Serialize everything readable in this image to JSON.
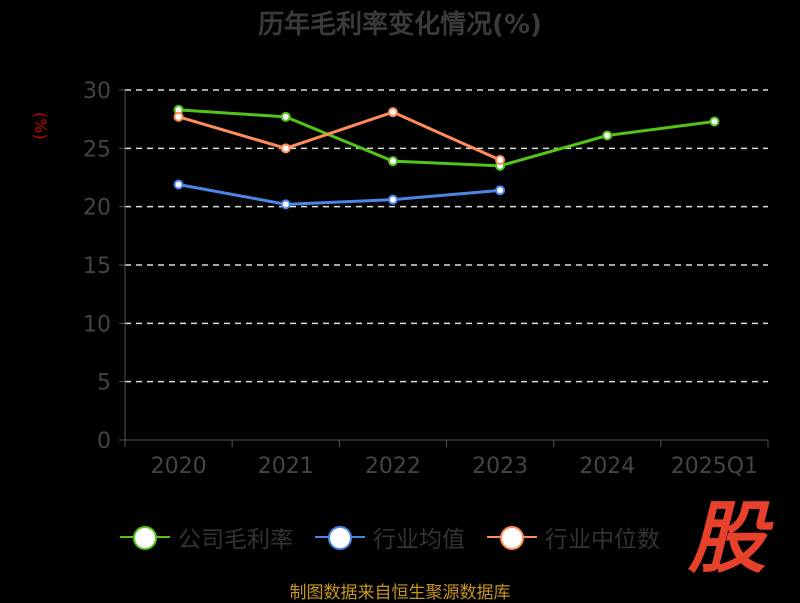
{
  "chart_data": {
    "type": "line",
    "title": "历年毛利率变化情况(%)",
    "ylabel": "(%)",
    "xlabel": "",
    "categories": [
      "2020",
      "2021",
      "2022",
      "2023",
      "2024",
      "2025Q1"
    ],
    "ylim": [
      0,
      30
    ],
    "yticks": [
      "0",
      "5",
      "10",
      "15",
      "20",
      "25",
      "30"
    ],
    "grid": true,
    "legend_position": "bottom",
    "series": [
      {
        "name": "公司毛利率",
        "color": "#52c41a",
        "values": [
          28.3,
          27.7,
          23.9,
          23.5,
          26.1,
          27.3
        ]
      },
      {
        "name": "行业均值",
        "color": "#4a86e8",
        "values": [
          21.9,
          20.2,
          20.6,
          21.4,
          null,
          null
        ]
      },
      {
        "name": "行业中位数",
        "color": "#ff8c5a",
        "values": [
          27.7,
          25.0,
          28.1,
          24.0,
          null,
          null
        ]
      }
    ]
  },
  "source": "制图数据来自恒生聚源数据库",
  "logo": "股"
}
